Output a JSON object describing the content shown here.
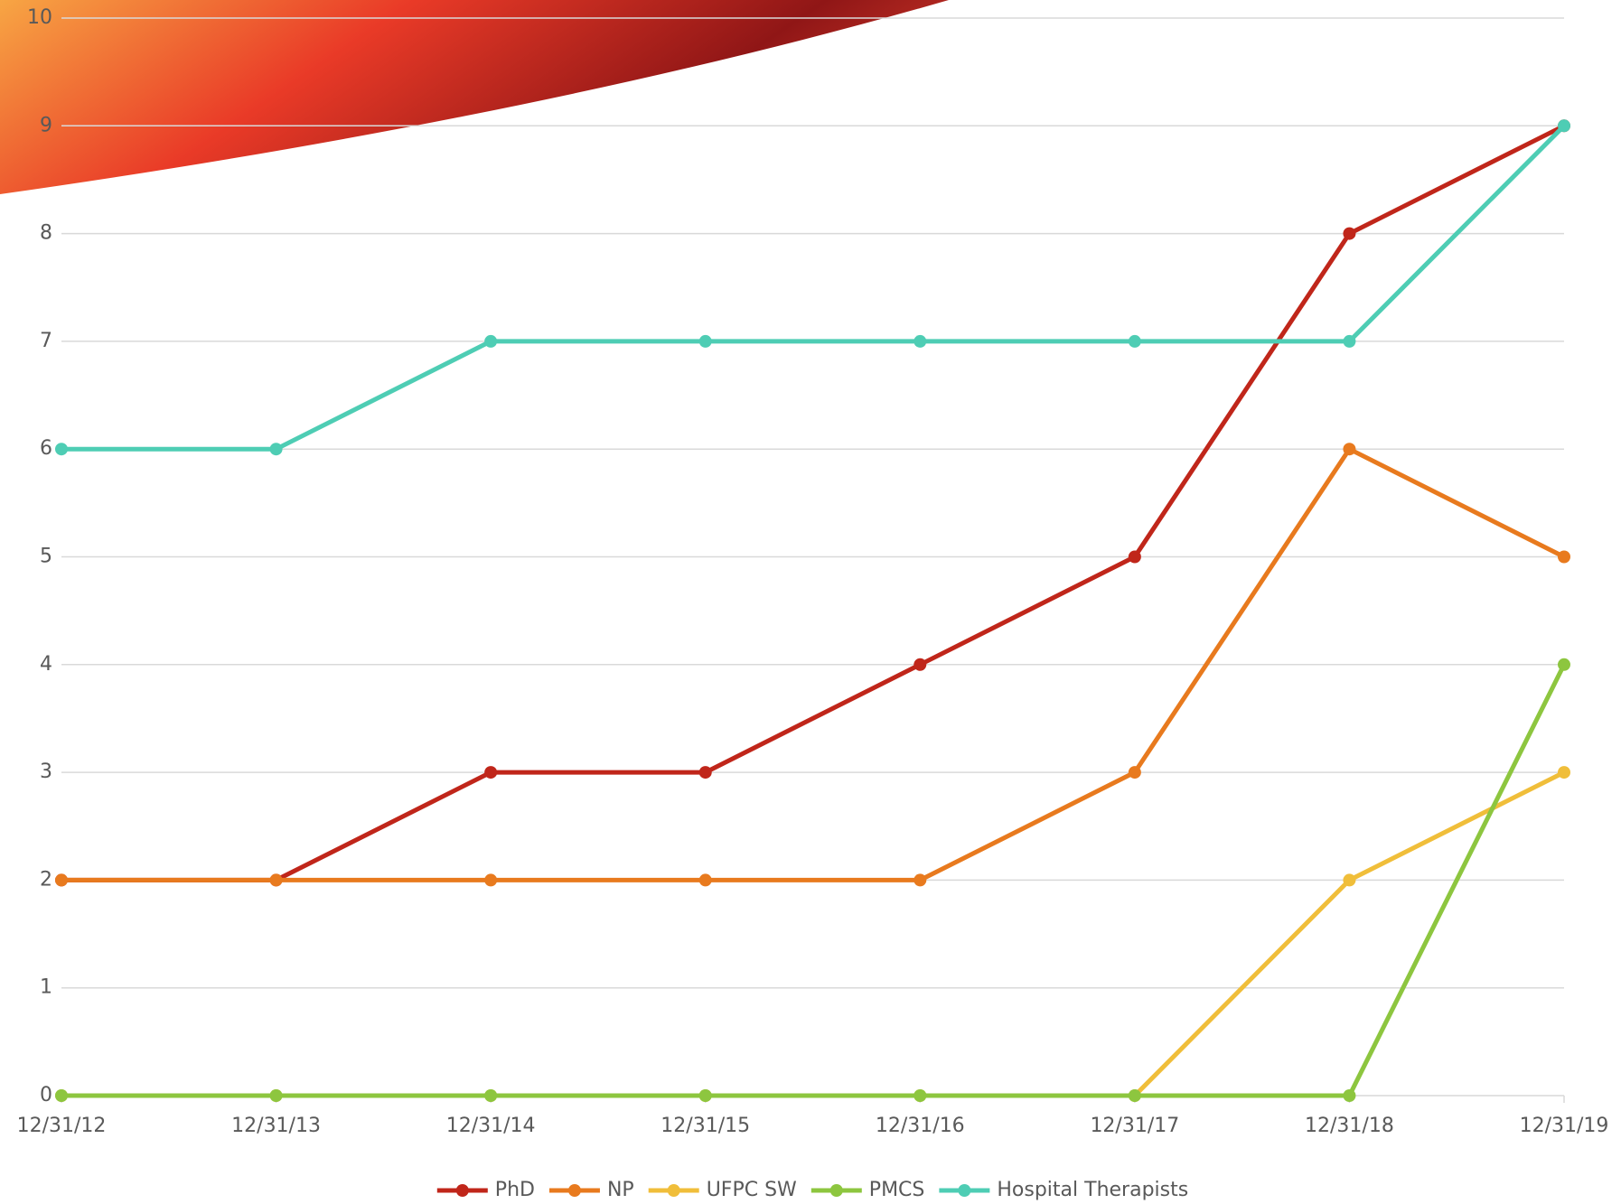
{
  "chart_data": {
    "type": "line",
    "categories": [
      "12/31/12",
      "12/31/13",
      "12/31/14",
      "12/31/15",
      "12/31/16",
      "12/31/17",
      "12/31/18",
      "12/31/19"
    ],
    "series": [
      {
        "name": "PhD",
        "color": "#c0261a",
        "values": [
          2,
          2,
          3,
          3,
          4,
          5,
          8,
          9
        ]
      },
      {
        "name": "NP",
        "color": "#e87a1e",
        "values": [
          2,
          2,
          2,
          2,
          2,
          3,
          6,
          5
        ]
      },
      {
        "name": "UFPC SW",
        "color": "#f0be3a",
        "values": [
          0,
          0,
          0,
          0,
          0,
          0,
          2,
          3
        ]
      },
      {
        "name": "PMCS",
        "color": "#8dc63f",
        "values": [
          0,
          0,
          0,
          0,
          0,
          0,
          0,
          4
        ]
      },
      {
        "name": "Hospital Therapists",
        "color": "#4ecdb4",
        "values": [
          6,
          6,
          7,
          7,
          7,
          7,
          7,
          9
        ]
      }
    ],
    "ylim": [
      0,
      10
    ],
    "yticks": [
      0,
      1,
      2,
      3,
      4,
      5,
      6,
      7,
      8,
      9,
      10
    ],
    "grid": true,
    "legend": "bottom"
  }
}
